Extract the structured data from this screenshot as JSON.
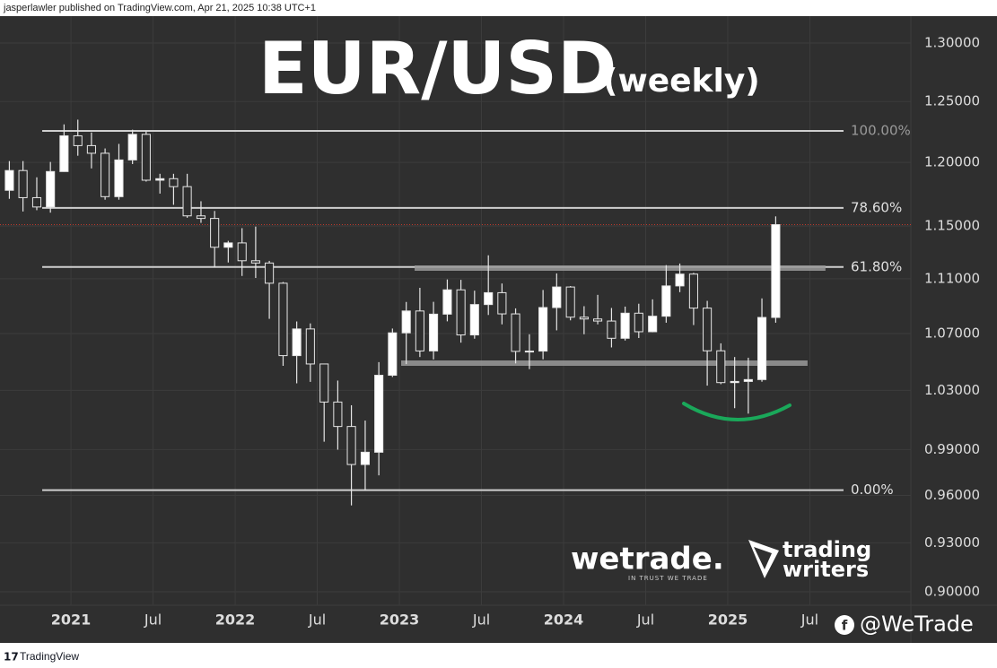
{
  "header": {
    "text": "jasperlawler published on TradingView.com, Apr 21, 2025 10:38 UTC+1"
  },
  "footer": {
    "text": "TradingView"
  },
  "chart_data": {
    "type": "candlestick",
    "title": "EUR/USD",
    "subtitle": "(weekly)",
    "log_scale": true,
    "grid": true,
    "up_color": "#ffffff",
    "down_color": "#2e2e2e",
    "wick_color": "#e6e6e6",
    "x": [
      2020.625,
      2020.708,
      2020.792,
      2020.875,
      2020.958,
      2021.042,
      2021.125,
      2021.208,
      2021.292,
      2021.375,
      2021.458,
      2021.542,
      2021.625,
      2021.708,
      2021.792,
      2021.875,
      2021.958,
      2022.042,
      2022.125,
      2022.208,
      2022.292,
      2022.375,
      2022.458,
      2022.542,
      2022.625,
      2022.708,
      2022.792,
      2022.875,
      2022.958,
      2023.042,
      2023.125,
      2023.208,
      2023.292,
      2023.375,
      2023.458,
      2023.542,
      2023.625,
      2023.708,
      2023.792,
      2023.875,
      2023.958,
      2024.042,
      2024.125,
      2024.208,
      2024.292,
      2024.375,
      2024.458,
      2024.542,
      2024.625,
      2024.708,
      2024.792,
      2024.875,
      2024.958,
      2025.042,
      2025.125,
      2025.208,
      2025.292
    ],
    "open": [
      1.1778,
      1.1935,
      1.172,
      1.1647,
      1.1927,
      1.2216,
      1.2136,
      1.2074,
      1.1728,
      1.202,
      1.2228,
      1.1858,
      1.187,
      1.1807,
      1.1578,
      1.1558,
      1.1337,
      1.137,
      1.1235,
      1.1218,
      1.1067,
      1.0543,
      1.0733,
      1.0484,
      1.022,
      1.0054,
      0.9801,
      0.9882,
      1.0405,
      1.0705,
      1.0863,
      1.0576,
      1.084,
      1.1018,
      1.069,
      1.091,
      1.0997,
      1.0842,
      1.0573,
      1.0575,
      1.0888,
      1.1039,
      1.0818,
      1.0805,
      1.079,
      1.0666,
      1.0847,
      1.0713,
      1.0825,
      1.1047,
      1.1135,
      1.0884,
      1.0577,
      1.0354,
      1.0362,
      1.0375,
      1.0816
    ],
    "high": [
      1.2011,
      1.2011,
      1.1881,
      1.2004,
      1.231,
      1.2349,
      1.2243,
      1.2113,
      1.215,
      1.2266,
      1.2254,
      1.1909,
      1.1909,
      1.1909,
      1.1692,
      1.1616,
      1.1386,
      1.1483,
      1.1495,
      1.1234,
      1.1076,
      1.0787,
      1.0773,
      1.0486,
      1.0368,
      1.0198,
      1.0094,
      1.0497,
      1.0736,
      1.0929,
      1.1033,
      1.093,
      1.1095,
      1.1092,
      1.1012,
      1.1276,
      1.1065,
      1.0882,
      1.0695,
      1.1017,
      1.114,
      1.1046,
      1.0898,
      1.0981,
      1.0885,
      1.0895,
      1.0916,
      1.0948,
      1.1202,
      1.1214,
      1.1144,
      1.0937,
      1.063,
      1.0533,
      1.0528,
      1.0955,
      1.1574
    ],
    "low": [
      1.1711,
      1.1612,
      1.1622,
      1.1603,
      1.1925,
      1.2054,
      1.1952,
      1.1704,
      1.1704,
      1.1987,
      1.1847,
      1.1752,
      1.1664,
      1.1563,
      1.1524,
      1.1186,
      1.1222,
      1.1121,
      1.1106,
      1.0806,
      1.0471,
      1.0349,
      1.0359,
      0.9952,
      0.9899,
      0.9536,
      0.9632,
      0.973,
      1.0393,
      1.0483,
      1.0533,
      1.0516,
      1.0788,
      1.0635,
      1.0663,
      1.0834,
      1.0766,
      1.0488,
      1.0448,
      1.0517,
      1.0723,
      1.0795,
      1.0695,
      1.0766,
      1.0601,
      1.065,
      1.0668,
      1.0709,
      1.0778,
      1.1001,
      1.0761,
      1.0333,
      1.0343,
      1.0178,
      1.0141,
      1.036,
      1.0778
    ],
    "close": [
      1.1935,
      1.172,
      1.1647,
      1.1927,
      1.2216,
      1.2136,
      1.2074,
      1.1728,
      1.202,
      1.2228,
      1.1858,
      1.187,
      1.1807,
      1.1578,
      1.1558,
      1.1337,
      1.137,
      1.1235,
      1.1218,
      1.1067,
      1.0543,
      1.0733,
      1.0484,
      1.022,
      1.0054,
      0.9801,
      0.9882,
      1.0405,
      1.0705,
      1.0863,
      1.0576,
      1.084,
      1.1018,
      1.069,
      1.091,
      1.0997,
      1.0842,
      1.0573,
      1.0575,
      1.0888,
      1.1039,
      1.0818,
      1.0805,
      1.079,
      1.0666,
      1.0847,
      1.0713,
      1.0825,
      1.1047,
      1.1135,
      1.0884,
      1.0577,
      1.0354,
      1.0362,
      1.0375,
      1.0816,
      1.151
    ],
    "xlim": [
      2020.568,
      2026.115
    ],
    "ylim": [
      0.8919,
      1.3236
    ],
    "xticks": [
      {
        "value": 2021,
        "label": "2021"
      },
      {
        "value": 2021.5,
        "label": "Jul"
      },
      {
        "value": 2022,
        "label": "2022"
      },
      {
        "value": 2022.5,
        "label": "Jul"
      },
      {
        "value": 2023,
        "label": "2023"
      },
      {
        "value": 2023.5,
        "label": "Jul"
      },
      {
        "value": 2024,
        "label": "2024"
      },
      {
        "value": 2024.5,
        "label": "Jul"
      },
      {
        "value": 2025,
        "label": "2025"
      },
      {
        "value": 2025.5,
        "label": "Jul"
      }
    ],
    "yticks": [
      {
        "value": 1.3,
        "label": "1.30000"
      },
      {
        "value": 1.25,
        "label": "1.25000"
      },
      {
        "value": 1.2,
        "label": "1.20000"
      },
      {
        "value": 1.15,
        "label": "1.15000"
      },
      {
        "value": 1.11,
        "label": "1.11000"
      },
      {
        "value": 1.07,
        "label": "1.07000"
      },
      {
        "value": 1.03,
        "label": "1.03000"
      },
      {
        "value": 0.99,
        "label": "0.99000"
      },
      {
        "value": 0.96,
        "label": "0.96000"
      },
      {
        "value": 0.93,
        "label": "0.93000"
      },
      {
        "value": 0.9,
        "label": "0.90000"
      }
    ],
    "levels": [
      {
        "label": "100.00%",
        "price": 1.2256,
        "color": "#9a9a9a"
      },
      {
        "label": "78.60%",
        "price": 1.164,
        "color": "#e0e0e0"
      },
      {
        "label": "61.80%",
        "price": 1.1188,
        "color": "#e0e0e0"
      },
      {
        "label": "0.00%",
        "price": 0.9634,
        "color": "#e0e0e0"
      }
    ],
    "level_x": [
      2020.825,
      2025.705
    ],
    "zones": [
      {
        "price": 1.118,
        "x": [
          2023.093,
          2025.595
        ]
      },
      {
        "price": 1.049,
        "x": [
          2023.011,
          2025.486
        ]
      }
    ],
    "last_price_color": "#c0392b"
  },
  "watermarks": {
    "wetrade": "wetrade.",
    "tagline": "IN TRUST WE TRADE",
    "tw1": "trading",
    "tw2": "writers",
    "handle": "@WeTrade"
  }
}
